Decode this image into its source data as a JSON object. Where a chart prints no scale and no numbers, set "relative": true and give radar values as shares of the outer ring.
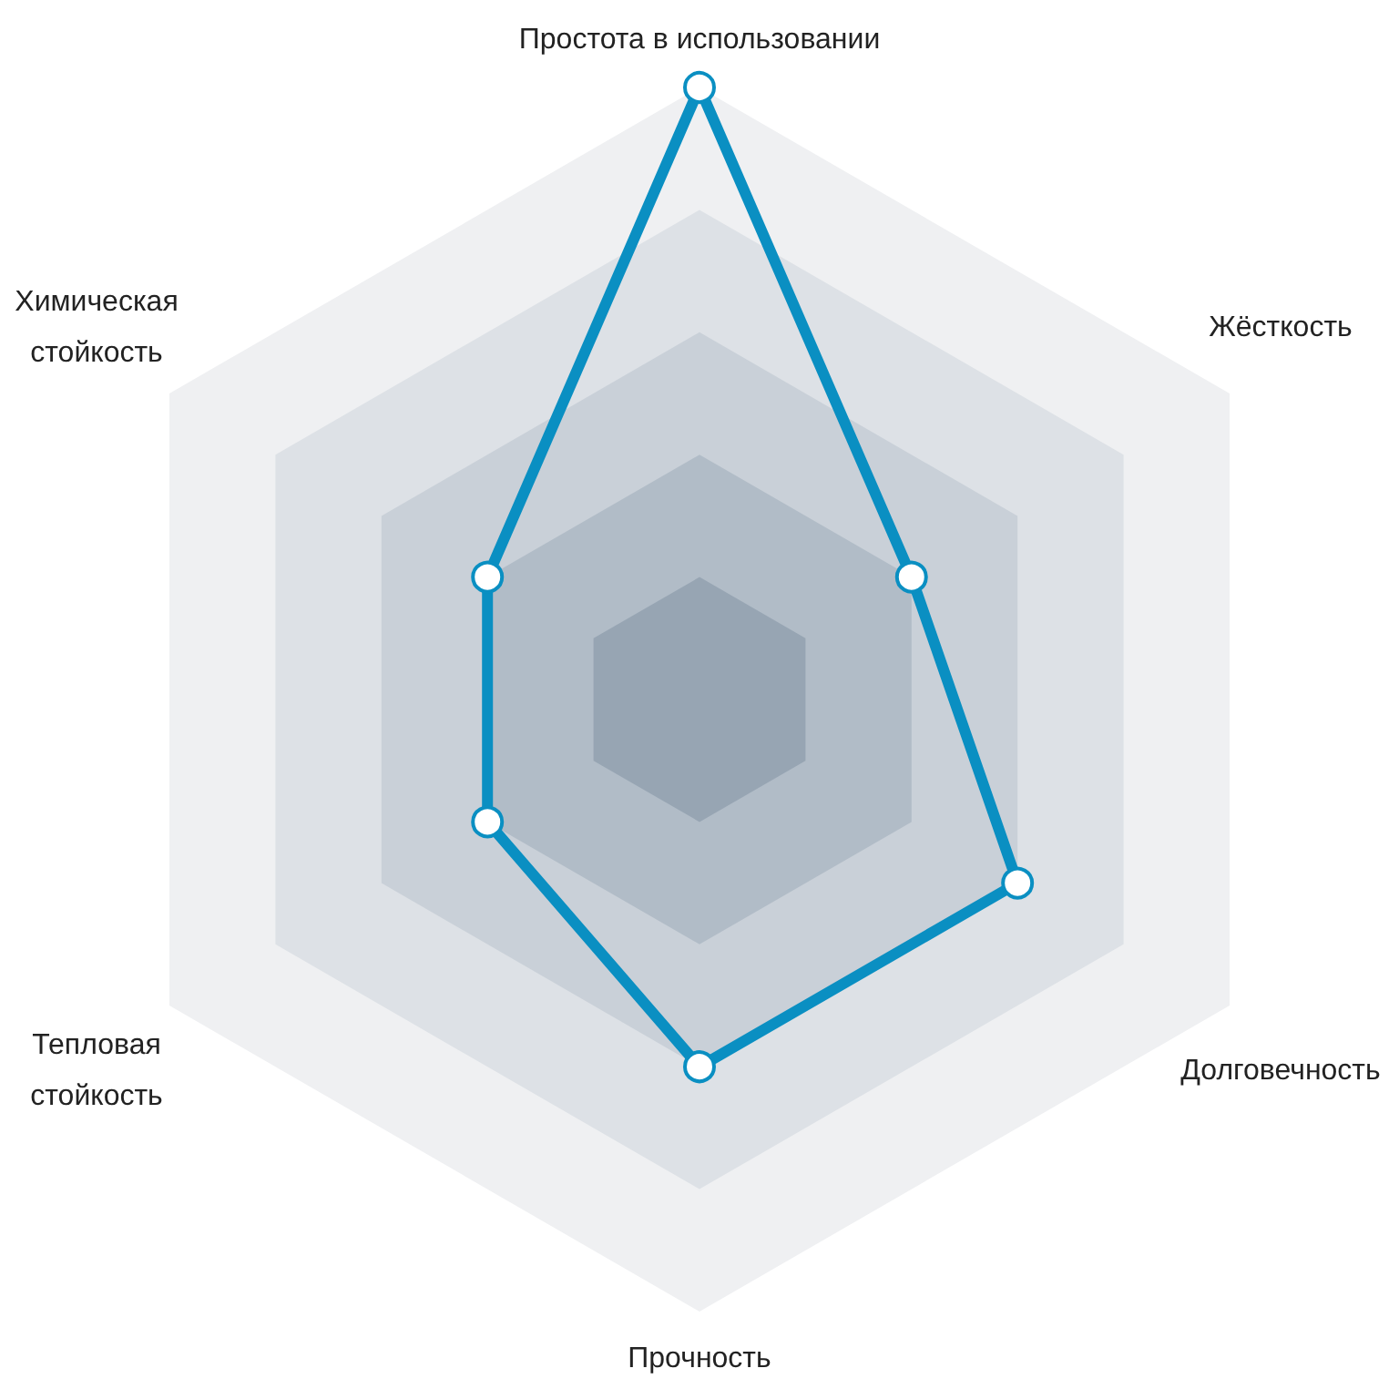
{
  "chart_data": {
    "type": "radar",
    "relative": true,
    "grid": true,
    "marker": "circle",
    "categories": [
      "Простота в использовании",
      "Жёсткость",
      "Долговечность",
      "Прочность",
      "Тепловая\nстойкость",
      "Химическая\nстойкость"
    ],
    "series": [
      {
        "color": "#0a8fc2",
        "values": [
          1,
          0.4,
          0.6,
          0.6,
          0.4,
          0.4
        ]
      }
    ]
  }
}
